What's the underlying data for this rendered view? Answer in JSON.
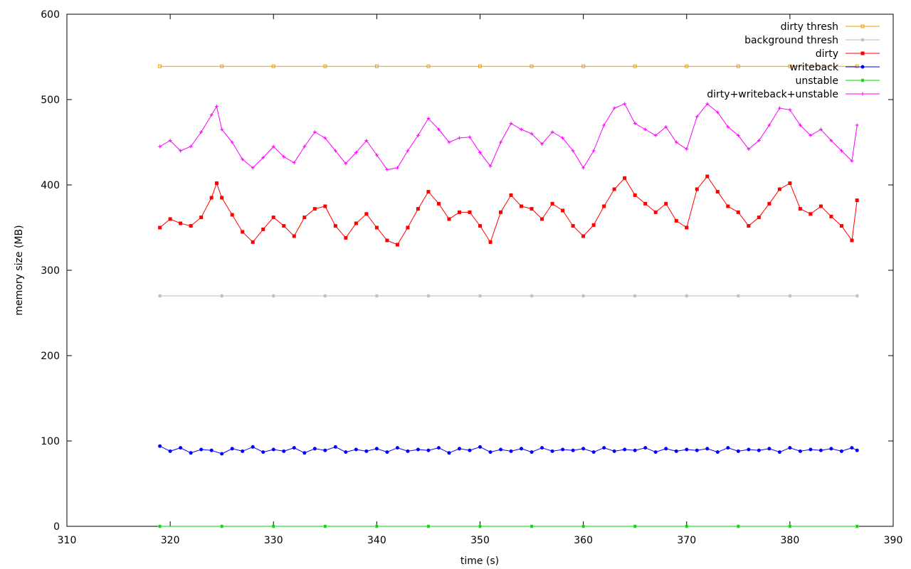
{
  "chart_data": {
    "type": "line",
    "title": "",
    "xlabel": "time (s)",
    "ylabel": "memory size (MB)",
    "xlim": [
      310,
      390
    ],
    "ylim": [
      0,
      600
    ],
    "x_ticks": [
      "310",
      "320",
      "330",
      "340",
      "350",
      "360",
      "370",
      "380",
      "390"
    ],
    "y_ticks": [
      "0",
      "100",
      "200",
      "300",
      "400",
      "500",
      "600"
    ],
    "grid": false,
    "legend_position": "top-right",
    "x_range_of_samples": [
      319,
      386.5
    ],
    "series": [
      {
        "name": "dirty thresh",
        "color": "#f0a000",
        "marker": "square-outline",
        "x": [
          319,
          325,
          330,
          335,
          340,
          345,
          350,
          355,
          360,
          365,
          370,
          375,
          380,
          386.5
        ],
        "y": [
          539,
          539,
          539,
          539,
          539,
          539,
          539,
          539,
          539,
          539,
          539,
          539,
          539,
          539
        ]
      },
      {
        "name": "background thresh",
        "color": "#bbbbbb",
        "marker": "star",
        "x": [
          319,
          325,
          330,
          335,
          340,
          345,
          350,
          355,
          360,
          365,
          370,
          375,
          380,
          386.5
        ],
        "y": [
          270,
          270,
          270,
          270,
          270,
          270,
          270,
          270,
          270,
          270,
          270,
          270,
          270,
          270
        ]
      },
      {
        "name": "dirty",
        "color": "#ff0000",
        "marker": "filled-square",
        "x": [
          319,
          320,
          321,
          322,
          323,
          324,
          324.5,
          325,
          326,
          327,
          328,
          329,
          330,
          331,
          332,
          333,
          334,
          335,
          336,
          337,
          338,
          339,
          340,
          341,
          342,
          343,
          344,
          345,
          346,
          347,
          348,
          349,
          350,
          351,
          352,
          353,
          354,
          355,
          356,
          357,
          358,
          359,
          360,
          361,
          362,
          363,
          364,
          365,
          366,
          367,
          368,
          369,
          370,
          371,
          372,
          373,
          374,
          375,
          376,
          377,
          378,
          379,
          380,
          381,
          382,
          383,
          384,
          385,
          386,
          386.5
        ],
        "y": [
          350,
          360,
          355,
          352,
          362,
          385,
          402,
          385,
          365,
          345,
          333,
          348,
          362,
          352,
          340,
          362,
          372,
          375,
          352,
          338,
          355,
          366,
          350,
          335,
          330,
          350,
          372,
          392,
          378,
          360,
          368,
          368,
          352,
          333,
          368,
          388,
          375,
          372,
          360,
          378,
          370,
          352,
          340,
          353,
          375,
          395,
          408,
          388,
          378,
          368,
          378,
          358,
          350,
          395,
          410,
          392,
          375,
          368,
          352,
          362,
          378,
          395,
          402,
          372,
          366,
          375,
          363,
          352,
          335,
          382
        ]
      },
      {
        "name": "writeback",
        "color": "#0000ff",
        "marker": "filled-circle",
        "x": [
          319,
          320,
          321,
          322,
          323,
          324,
          325,
          326,
          327,
          328,
          329,
          330,
          331,
          332,
          333,
          334,
          335,
          336,
          337,
          338,
          339,
          340,
          341,
          342,
          343,
          344,
          345,
          346,
          347,
          348,
          349,
          350,
          351,
          352,
          353,
          354,
          355,
          356,
          357,
          358,
          359,
          360,
          361,
          362,
          363,
          364,
          365,
          366,
          367,
          368,
          369,
          370,
          371,
          372,
          373,
          374,
          375,
          376,
          377,
          378,
          379,
          380,
          381,
          382,
          383,
          384,
          385,
          386,
          386.5
        ],
        "y": [
          94,
          88,
          92,
          86,
          90,
          89,
          85,
          91,
          88,
          93,
          87,
          90,
          88,
          92,
          86,
          91,
          89,
          93,
          87,
          90,
          88,
          91,
          87,
          92,
          88,
          90,
          89,
          92,
          86,
          91,
          89,
          93,
          87,
          90,
          88,
          91,
          87,
          92,
          88,
          90,
          89,
          91,
          87,
          92,
          88,
          90,
          89,
          92,
          87,
          91,
          88,
          90,
          89,
          91,
          87,
          92,
          88,
          90,
          89,
          91,
          87,
          92,
          88,
          90,
          89,
          91,
          88,
          92,
          89
        ]
      },
      {
        "name": "unstable",
        "color": "#00d000",
        "marker": "star",
        "x": [
          319,
          325,
          330,
          335,
          340,
          345,
          350,
          355,
          360,
          365,
          370,
          375,
          380,
          386.5
        ],
        "y": [
          0,
          0,
          0,
          0,
          0,
          0,
          0,
          0,
          0,
          0,
          0,
          0,
          0,
          0
        ]
      },
      {
        "name": "dirty+writeback+unstable",
        "color": "#ff00ff",
        "marker": "plus",
        "x": [
          319,
          320,
          321,
          322,
          323,
          324,
          324.5,
          325,
          326,
          327,
          328,
          329,
          330,
          331,
          332,
          333,
          334,
          335,
          336,
          337,
          338,
          339,
          340,
          341,
          342,
          343,
          344,
          345,
          346,
          347,
          348,
          349,
          350,
          351,
          352,
          353,
          354,
          355,
          356,
          357,
          358,
          359,
          360,
          361,
          362,
          363,
          364,
          365,
          366,
          367,
          368,
          369,
          370,
          371,
          372,
          373,
          374,
          375,
          376,
          377,
          378,
          379,
          380,
          381,
          382,
          383,
          384,
          385,
          386,
          386.5
        ],
        "y": [
          445,
          452,
          440,
          445,
          462,
          482,
          492,
          465,
          450,
          430,
          420,
          432,
          445,
          433,
          426,
          445,
          462,
          455,
          440,
          425,
          438,
          452,
          435,
          418,
          420,
          440,
          458,
          478,
          465,
          450,
          455,
          456,
          438,
          422,
          450,
          472,
          465,
          460,
          448,
          462,
          455,
          440,
          420,
          440,
          470,
          490,
          495,
          472,
          465,
          458,
          468,
          450,
          442,
          480,
          495,
          485,
          468,
          458,
          442,
          452,
          470,
          490,
          488,
          470,
          458,
          465,
          452,
          440,
          428,
          470
        ]
      }
    ]
  }
}
